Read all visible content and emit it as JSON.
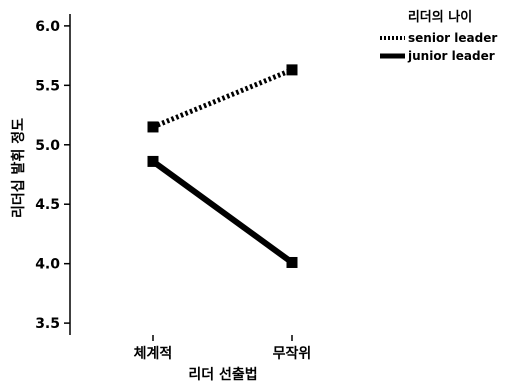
{
  "chart_data": {
    "type": "line",
    "categories": [
      "체계적",
      "무작위"
    ],
    "series": [
      {
        "name": "senior leader",
        "values": [
          5.15,
          5.63
        ],
        "line_style": "dotted",
        "color": "#000000"
      },
      {
        "name": "junior leader",
        "values": [
          4.86,
          4.01
        ],
        "line_style": "solid",
        "color": "#000000"
      }
    ],
    "y_ticks": [
      "3.5",
      "4.0",
      "4.5",
      "5.0",
      "5.5",
      "6.0"
    ],
    "ylim": [
      3.4,
      6.1
    ],
    "xlabel": "리더 선출법",
    "ylabel": "리더십 발휘 정도",
    "legend": {
      "title": "리더의 나이",
      "placement": "top-right"
    },
    "grid": false,
    "marker": "square"
  }
}
